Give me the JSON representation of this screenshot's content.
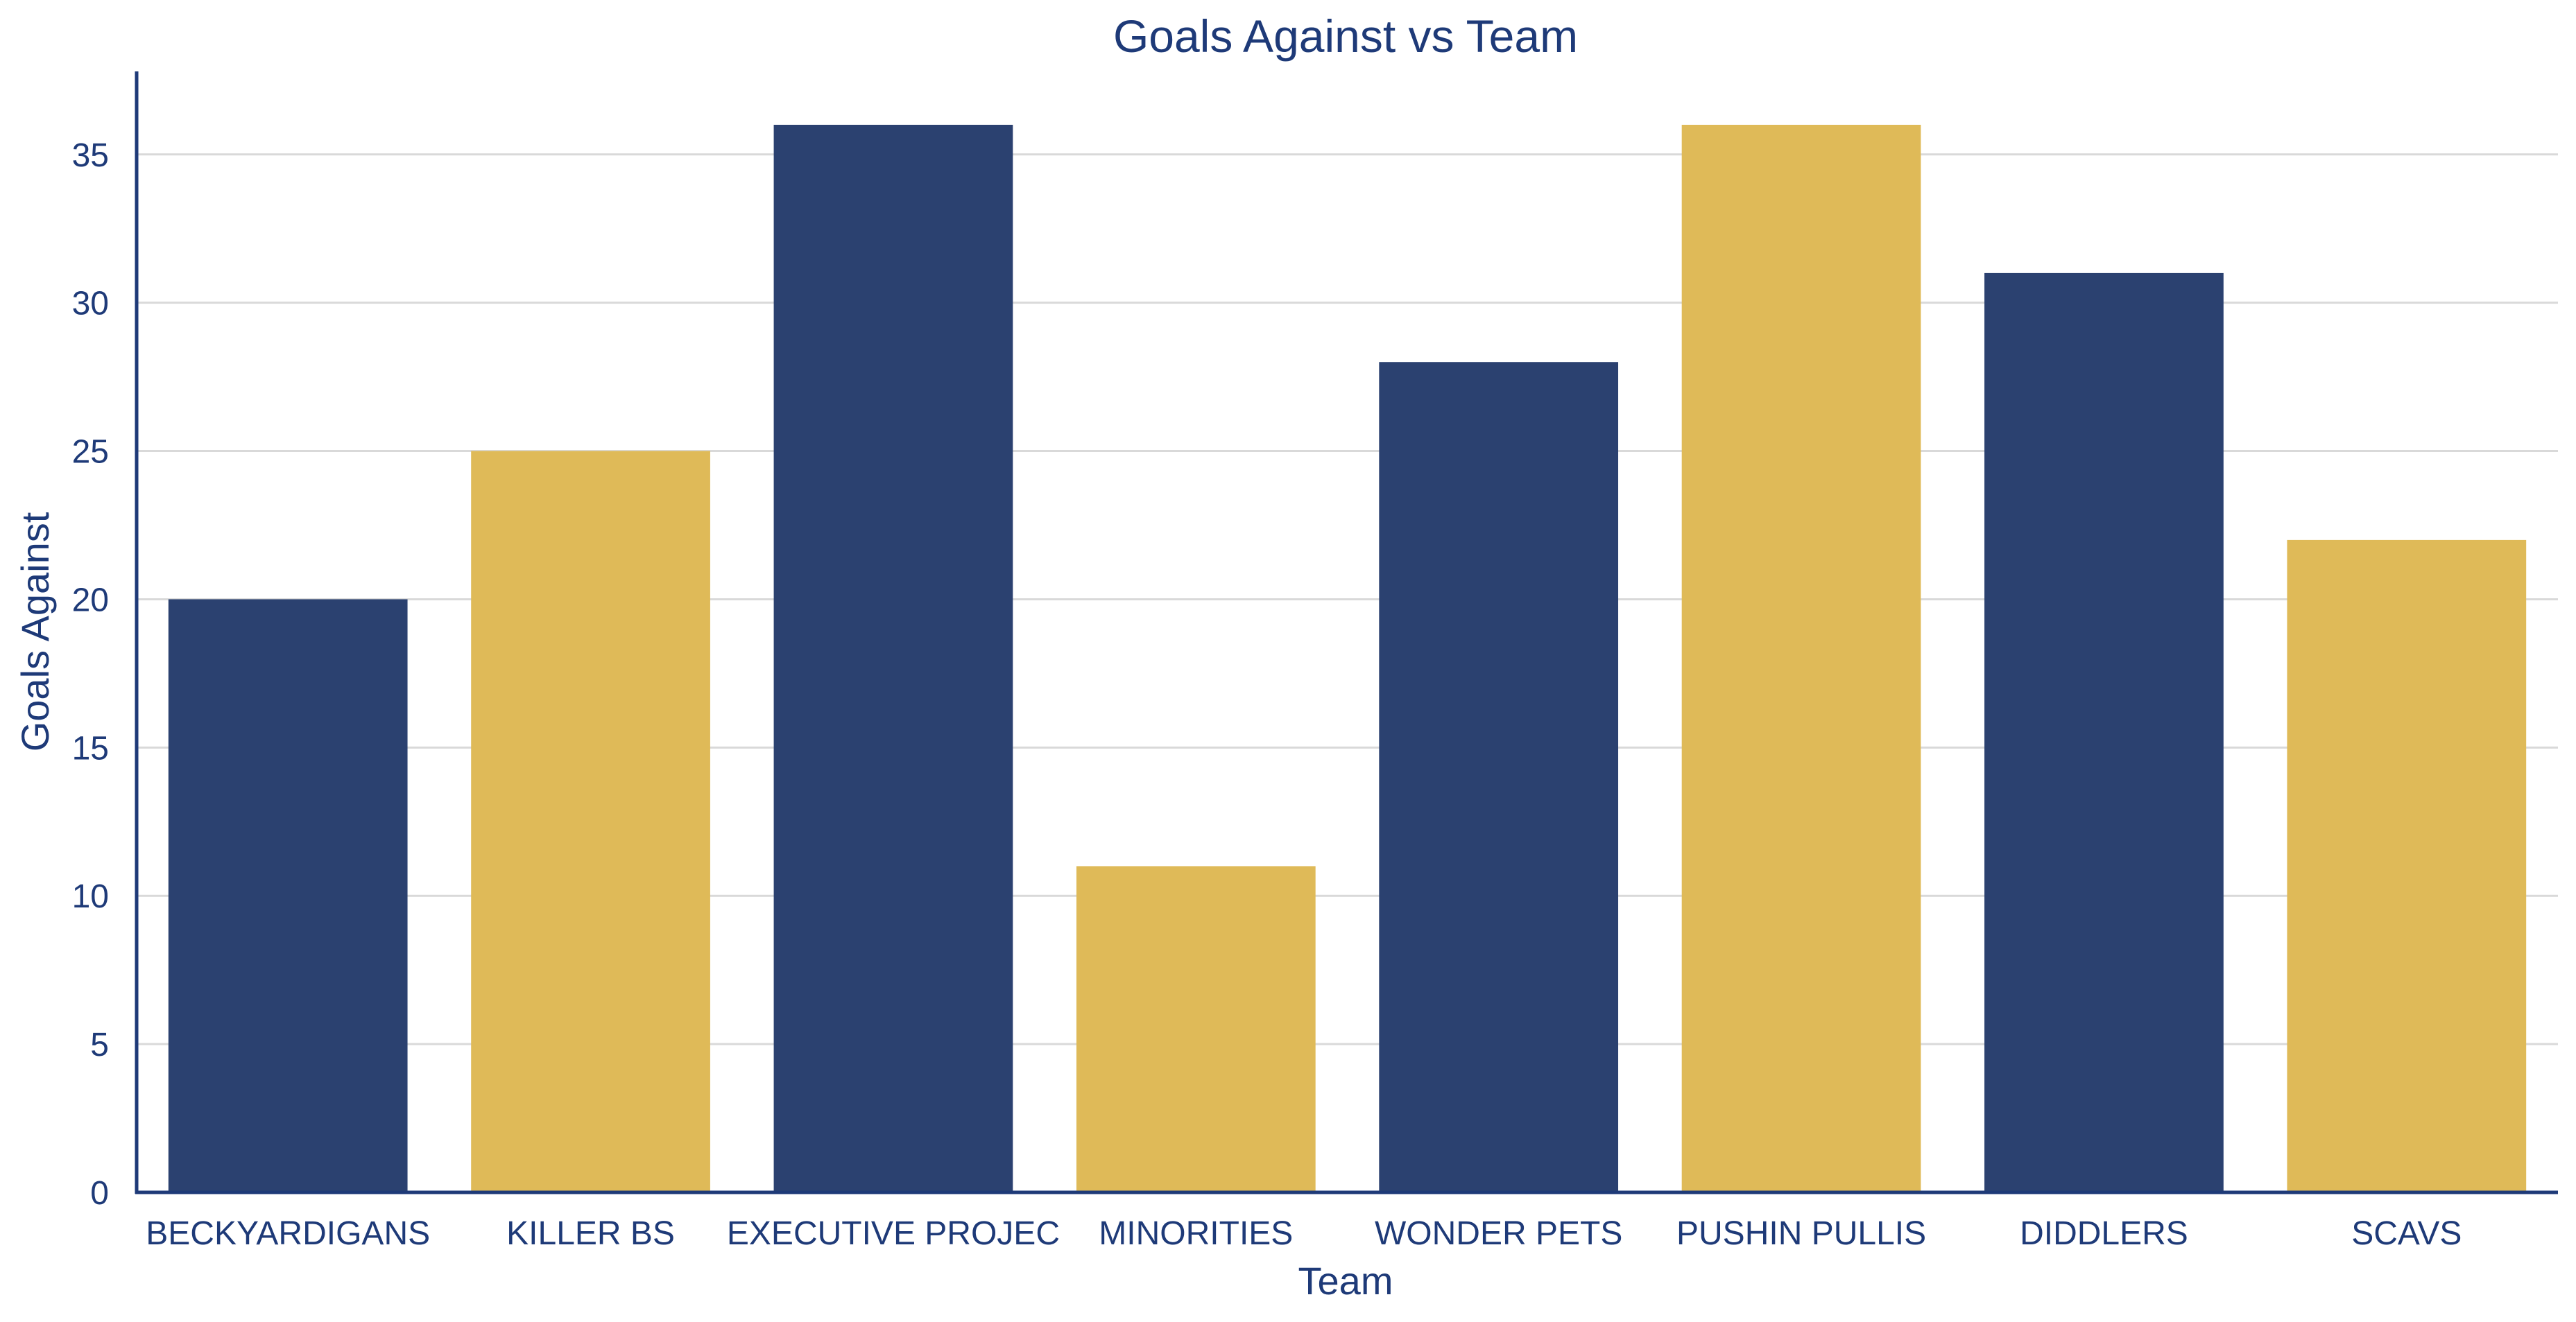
{
  "colors": {
    "primary": "#2B4170",
    "secondary": "#DFBA58",
    "text": "#1E3A78",
    "axis": "#1E3A78",
    "grid": "#D9D9D9",
    "background": "#FFFFFF"
  },
  "chart_data": {
    "type": "bar",
    "title": "Goals Against vs Team",
    "xlabel": "Team",
    "ylabel": "Goals Against",
    "categories": [
      "BECKYARDIGANS",
      "KILLER BS",
      "EXECUTIVE PROJEC",
      "MINORITIES",
      "WONDER PETS",
      "PUSHIN PULLIS",
      "DIDDLERS",
      "SCAVS"
    ],
    "values": [
      20,
      25,
      36,
      11,
      28,
      36,
      31,
      22
    ],
    "bar_colors": [
      "#2B4170",
      "#DFBA58",
      "#2B4170",
      "#DFBA58",
      "#2B4170",
      "#DFBA58",
      "#2B4170",
      "#DFBA58"
    ],
    "ylim": [
      0,
      37.8
    ],
    "yticks": [
      0,
      5,
      10,
      15,
      20,
      25,
      30,
      35
    ],
    "grid": true,
    "legend": "none"
  }
}
